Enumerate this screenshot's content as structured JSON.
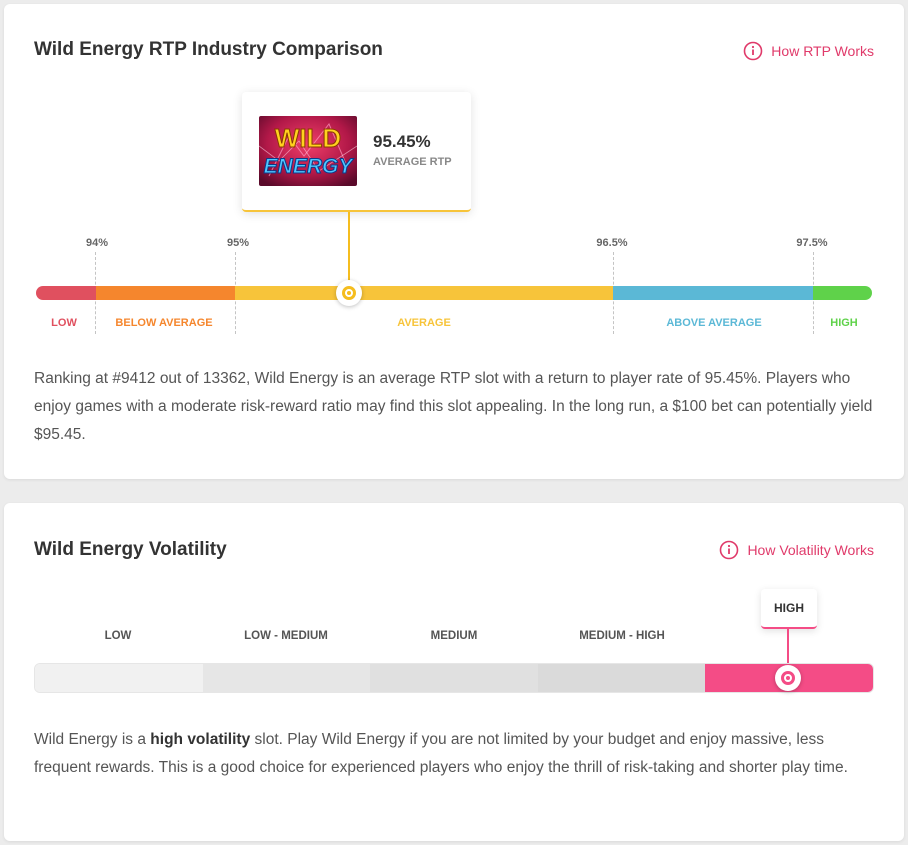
{
  "rtp_section": {
    "title": "Wild Energy RTP Industry Comparison",
    "help_link": "How RTP Works",
    "game": {
      "rtp_value": "95.45%",
      "rtp_label": "AVERAGE RTP",
      "thumbnail_line1": "WILD",
      "thumbnail_line2": "ENERGY"
    },
    "ticks": [
      "94%",
      "95%",
      "96.5%",
      "97.5%"
    ],
    "zones": [
      {
        "label": "LOW",
        "color": "#e0505f"
      },
      {
        "label": "BELOW AVERAGE",
        "color": "#f5862d"
      },
      {
        "label": "AVERAGE",
        "color": "#f7c43a"
      },
      {
        "label": "ABOVE AVERAGE",
        "color": "#5bb8d6"
      },
      {
        "label": "HIGH",
        "color": "#5fd24a"
      }
    ],
    "description": "Ranking at #9412 out of 13362, Wild Energy is an average RTP slot with a return to player rate of 95.45%. Players who enjoy games with a moderate risk-reward ratio may find this slot appealing. In the long run, a $100 bet can potentially yield $95.45."
  },
  "volatility_section": {
    "title": "Wild Energy Volatility",
    "help_link": "How Volatility Works",
    "levels": [
      "LOW",
      "LOW - MEDIUM",
      "MEDIUM",
      "MEDIUM - HIGH",
      "HIGH"
    ],
    "selected_level": "HIGH",
    "active_color": "#f44c86",
    "description_prefix": "Wild Energy is a ",
    "description_bold": "high volatility",
    "description_suffix": " slot. Play Wild Energy if you are not limited by your budget and enjoy massive, less frequent rewards. This is a good choice for experienced players who enjoy the thrill of risk-taking and shorter play time."
  }
}
